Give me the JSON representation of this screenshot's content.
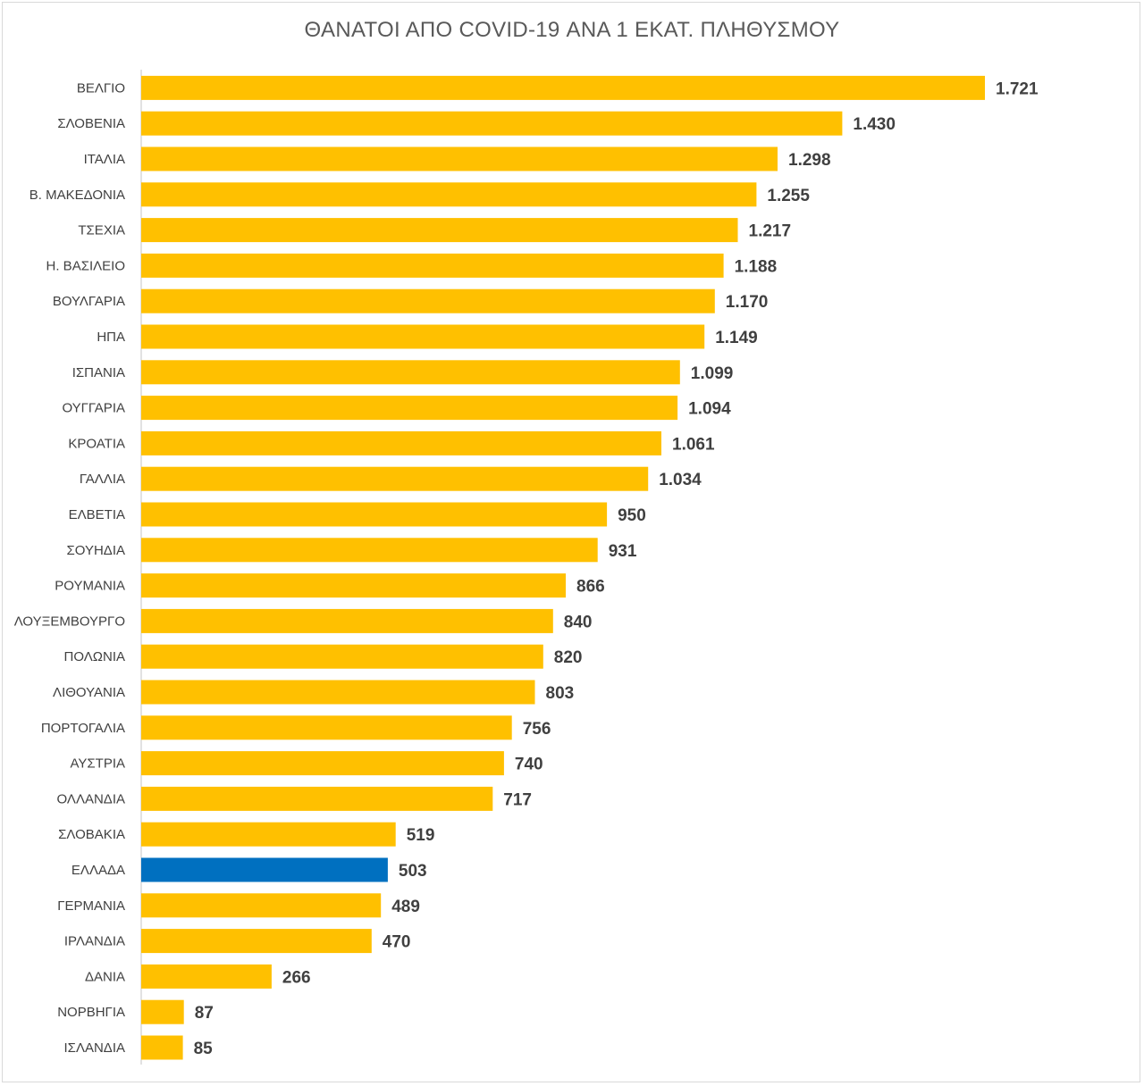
{
  "colors": {
    "bar": "#ffc000",
    "highlight": "#0070c0",
    "axis": "#d9d9d9",
    "text": "#404040",
    "title": "#595959"
  },
  "chart_data": {
    "type": "bar",
    "orientation": "horizontal",
    "title": "ΘΑΝΑΤΟΙ ΑΠΟ COVID-19 ΑΝΑ 1 ΕΚΑΤ. ΠΛΗΘΥΣΜΟΥ",
    "xlabel": "",
    "ylabel": "",
    "grid": false,
    "legend": "none",
    "xlim": [
      0,
      1850
    ],
    "highlight_category": "ΕΛΛΑΔΑ",
    "categories": [
      "ΒΕΛΓΙΟ",
      "ΣΛΟΒΕΝΙΑ",
      "ΙΤΑΛΙΑ",
      "Β. ΜΑΚΕΔΟΝΙΑ",
      "ΤΣΕΧΙΑ",
      "Η. ΒΑΣΙΛΕΙΟ",
      "ΒΟΥΛΓΑΡΙΑ",
      "ΗΠΑ",
      "ΙΣΠΑΝΙΑ",
      "ΟΥΓΓΑΡΙΑ",
      "ΚΡΟΑΤΙΑ",
      "ΓΑΛΛΙΑ",
      "ΕΛΒΕΤΙΑ",
      "ΣΟΥΗΔΙΑ",
      "ΡΟΥΜΑΝΙΑ",
      "ΛΟΥΞΕΜΒΟΥΡΓΟ",
      "ΠΟΛΩΝΙΑ",
      "ΛΙΘΟΥΑΝΙΑ",
      "ΠΟΡΤΟΓΑΛΙΑ",
      "ΑΥΣΤΡΙΑ",
      "ΟΛΛΑΝΔΙΑ",
      "ΣΛΟΒΑΚΙΑ",
      "ΕΛΛΑΔΑ",
      "ΓΕΡΜΑΝΙΑ",
      "ΙΡΛΑΝΔΙΑ",
      "ΔΑΝΙΑ",
      "ΝΟΡΒΗΓΙΑ",
      "ΙΣΛΑΝΔΙΑ"
    ],
    "values": [
      1721,
      1430,
      1298,
      1255,
      1217,
      1188,
      1170,
      1149,
      1099,
      1094,
      1061,
      1034,
      950,
      931,
      866,
      840,
      820,
      803,
      756,
      740,
      717,
      519,
      503,
      489,
      470,
      266,
      87,
      85
    ],
    "value_labels": [
      "1.721",
      "1.430",
      "1.298",
      "1.255",
      "1.217",
      "1.188",
      "1.170",
      "1.149",
      "1.099",
      "1.094",
      "1.061",
      "1.034",
      "950",
      "931",
      "866",
      "840",
      "820",
      "803",
      "756",
      "740",
      "717",
      "519",
      "503",
      "489",
      "470",
      "266",
      "87",
      "85"
    ]
  }
}
